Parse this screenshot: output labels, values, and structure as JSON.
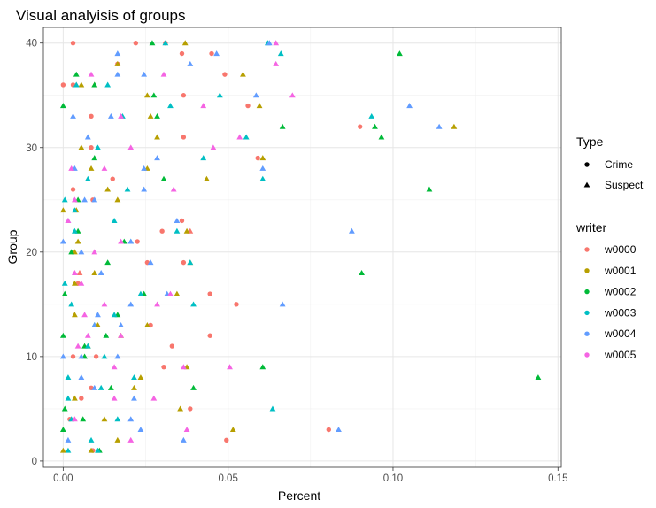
{
  "chart_data": {
    "type": "scatter",
    "title": "Visual analyisis of groups",
    "xlabel": "Percent",
    "ylabel": "Group",
    "xlim": [
      -0.006,
      0.151
    ],
    "ylim": [
      -0.6,
      41.5
    ],
    "x_ticks": [
      0.0,
      0.05,
      0.1,
      0.15
    ],
    "x_tick_labels": [
      "0.00",
      "0.05",
      "0.10",
      "0.15"
    ],
    "y_ticks": [
      0,
      10,
      20,
      30,
      40
    ],
    "y_tick_labels": [
      "0",
      "10",
      "20",
      "30",
      "40"
    ],
    "grid": true,
    "legend_placement": "right",
    "legends": [
      {
        "title": "Type",
        "kind": "shape",
        "entries": [
          {
            "label": "Crime",
            "shape": "circle"
          },
          {
            "label": "Suspect",
            "shape": "triangle"
          }
        ]
      },
      {
        "title": "writer",
        "kind": "color",
        "entries": [
          {
            "label": "w0000",
            "color": "#F8766D"
          },
          {
            "label": "w0001",
            "color": "#B79F00"
          },
          {
            "label": "w0002",
            "color": "#00BA38"
          },
          {
            "label": "w0003",
            "color": "#00BFC4"
          },
          {
            "label": "w0004",
            "color": "#619CFF"
          },
          {
            "label": "w0005",
            "color": "#F564E3"
          }
        ]
      }
    ],
    "series": [
      {
        "writer": "w0000",
        "type": "Crime",
        "points": [
          [
            0.003,
            40
          ],
          [
            0.022,
            40
          ],
          [
            0.031,
            40
          ],
          [
            0.036,
            39
          ],
          [
            0.045,
            39
          ],
          [
            0.0165,
            38
          ],
          [
            0.049,
            37
          ],
          [
            0.0,
            36
          ],
          [
            0.003,
            36
          ],
          [
            0.0085,
            33
          ],
          [
            0.0365,
            35
          ],
          [
            0.056,
            34
          ],
          [
            0.0365,
            31
          ],
          [
            0.059,
            29
          ],
          [
            0.09,
            32
          ],
          [
            0.0085,
            30
          ],
          [
            0.015,
            27
          ],
          [
            0.003,
            26
          ],
          [
            0.009,
            25
          ],
          [
            0.036,
            23
          ],
          [
            0.03,
            22
          ],
          [
            0.0225,
            21
          ],
          [
            0.0255,
            19
          ],
          [
            0.0365,
            19
          ],
          [
            0.0045,
            17
          ],
          [
            0.0445,
            16
          ],
          [
            0.0525,
            15
          ],
          [
            0.0265,
            13
          ],
          [
            0.033,
            11
          ],
          [
            0.0445,
            12
          ],
          [
            0.003,
            10
          ],
          [
            0.01,
            10
          ],
          [
            0.0305,
            9
          ],
          [
            0.0085,
            7
          ],
          [
            0.0385,
            5
          ],
          [
            0.0055,
            6
          ],
          [
            0.002,
            4
          ],
          [
            0.0805,
            3
          ],
          [
            0.0495,
            2
          ],
          [
            0.009,
            1
          ]
        ]
      },
      {
        "writer": "w0000",
        "type": "Suspect",
        "points": [
          [
            0.004,
            36
          ],
          [
            0.0385,
            22
          ],
          [
            0.005,
            18
          ]
        ]
      },
      {
        "writer": "w0001",
        "type": "Suspect",
        "points": [
          [
            0.037,
            40
          ],
          [
            0.0165,
            38
          ],
          [
            0.0055,
            36
          ],
          [
            0.0095,
            36
          ],
          [
            0.0255,
            35
          ],
          [
            0.0545,
            37
          ],
          [
            0.0595,
            34
          ],
          [
            0.0265,
            33
          ],
          [
            0.1185,
            32
          ],
          [
            0.0285,
            31
          ],
          [
            0.0055,
            30
          ],
          [
            0.0605,
            29
          ],
          [
            0.0085,
            28
          ],
          [
            0.0255,
            28
          ],
          [
            0.0135,
            26
          ],
          [
            0.0165,
            25
          ],
          [
            0.0435,
            27
          ],
          [
            0.0,
            24
          ],
          [
            0.004,
            24
          ],
          [
            0.0375,
            22
          ],
          [
            0.0045,
            21
          ],
          [
            0.0035,
            20
          ],
          [
            0.0385,
            19
          ],
          [
            0.0095,
            18
          ],
          [
            0.0035,
            17
          ],
          [
            0.0345,
            16
          ],
          [
            0.0035,
            14
          ],
          [
            0.0105,
            13
          ],
          [
            0.0175,
            12
          ],
          [
            0.0255,
            13
          ],
          [
            0.0075,
            11
          ],
          [
            0.0375,
            9
          ],
          [
            0.0355,
            5
          ],
          [
            0.0235,
            8
          ],
          [
            0.0215,
            7
          ],
          [
            0.0125,
            4
          ],
          [
            0.0515,
            3
          ],
          [
            0.0035,
            6
          ],
          [
            0.0165,
            2
          ],
          [
            0.0,
            1
          ],
          [
            0.0085,
            1
          ]
        ]
      },
      {
        "writer": "w0002",
        "type": "Suspect",
        "points": [
          [
            0.027,
            40
          ],
          [
            0.102,
            39
          ],
          [
            0.004,
            37
          ],
          [
            0.0095,
            36
          ],
          [
            0.0275,
            35
          ],
          [
            0.0,
            34
          ],
          [
            0.0285,
            33
          ],
          [
            0.0665,
            32
          ],
          [
            0.0945,
            32
          ],
          [
            0.0965,
            31
          ],
          [
            0.0095,
            29
          ],
          [
            0.0305,
            27
          ],
          [
            0.111,
            26
          ],
          [
            0.0045,
            25
          ],
          [
            0.0185,
            21
          ],
          [
            0.0045,
            22
          ],
          [
            0.0025,
            20
          ],
          [
            0.0135,
            19
          ],
          [
            0.0905,
            18
          ],
          [
            0.0005,
            16
          ],
          [
            0.0245,
            16
          ],
          [
            0.0165,
            14
          ],
          [
            0.0095,
            13
          ],
          [
            0.013,
            12
          ],
          [
            0.0,
            12
          ],
          [
            0.0065,
            11
          ],
          [
            0.0065,
            10
          ],
          [
            0.0605,
            9
          ],
          [
            0.0395,
            7
          ],
          [
            0.0145,
            7
          ],
          [
            0.144,
            8
          ],
          [
            0.006,
            4
          ],
          [
            0.0,
            3
          ],
          [
            0.0005,
            5
          ],
          [
            0.011,
            1
          ]
        ]
      },
      {
        "writer": "w0003",
        "type": "Suspect",
        "points": [
          [
            0.031,
            40
          ],
          [
            0.062,
            40
          ],
          [
            0.066,
            39
          ],
          [
            0.004,
            36
          ],
          [
            0.0135,
            36
          ],
          [
            0.0475,
            35
          ],
          [
            0.018,
            33
          ],
          [
            0.0325,
            34
          ],
          [
            0.0935,
            33
          ],
          [
            0.0555,
            31
          ],
          [
            0.0105,
            30
          ],
          [
            0.0425,
            29
          ],
          [
            0.0075,
            27
          ],
          [
            0.0195,
            26
          ],
          [
            0.0605,
            27
          ],
          [
            0.0005,
            25
          ],
          [
            0.0035,
            24
          ],
          [
            0.0155,
            23
          ],
          [
            0.0035,
            22
          ],
          [
            0.0345,
            22
          ],
          [
            0.0205,
            21
          ],
          [
            0.0385,
            19
          ],
          [
            0.0005,
            17
          ],
          [
            0.0025,
            15
          ],
          [
            0.0155,
            14
          ],
          [
            0.0395,
            15
          ],
          [
            0.0235,
            16
          ],
          [
            0.0125,
            10
          ],
          [
            0.0075,
            11
          ],
          [
            0.0015,
            8
          ],
          [
            0.0215,
            8
          ],
          [
            0.0115,
            7
          ],
          [
            0.0635,
            5
          ],
          [
            0.0025,
            4
          ],
          [
            0.0165,
            4
          ],
          [
            0.0015,
            6
          ],
          [
            0.0085,
            2
          ],
          [
            0.0015,
            1
          ],
          [
            0.0105,
            1
          ]
        ]
      },
      {
        "writer": "w0004",
        "type": "Suspect",
        "points": [
          [
            0.0625,
            40
          ],
          [
            0.0165,
            39
          ],
          [
            0.0465,
            39
          ],
          [
            0.0165,
            37
          ],
          [
            0.0385,
            38
          ],
          [
            0.003,
            33
          ],
          [
            0.0145,
            33
          ],
          [
            0.0245,
            37
          ],
          [
            0.0585,
            35
          ],
          [
            0.105,
            34
          ],
          [
            0.114,
            32
          ],
          [
            0.0075,
            31
          ],
          [
            0.0285,
            29
          ],
          [
            0.0035,
            28
          ],
          [
            0.0245,
            28
          ],
          [
            0.0605,
            28
          ],
          [
            0.0065,
            25
          ],
          [
            0.0245,
            26
          ],
          [
            0.0095,
            25
          ],
          [
            0.0,
            21
          ],
          [
            0.0015,
            23
          ],
          [
            0.0205,
            21
          ],
          [
            0.0875,
            22
          ],
          [
            0.0345,
            23
          ],
          [
            0.0055,
            20
          ],
          [
            0.0115,
            18
          ],
          [
            0.0265,
            19
          ],
          [
            0.0105,
            14
          ],
          [
            0.0205,
            15
          ],
          [
            0.0315,
            16
          ],
          [
            0.0665,
            15
          ],
          [
            0.0175,
            13
          ],
          [
            0.0095,
            13
          ],
          [
            0.0,
            10
          ],
          [
            0.0055,
            10
          ],
          [
            0.0095,
            7
          ],
          [
            0.0165,
            10
          ],
          [
            0.0055,
            8
          ],
          [
            0.0215,
            6
          ],
          [
            0.0205,
            4
          ],
          [
            0.0365,
            2
          ],
          [
            0.0015,
            2
          ],
          [
            0.0835,
            3
          ],
          [
            0.0235,
            3
          ]
        ]
      },
      {
        "writer": "w0005",
        "type": "Suspect",
        "points": [
          [
            0.0645,
            40
          ],
          [
            0.0645,
            38
          ],
          [
            0.0695,
            35
          ],
          [
            0.0085,
            37
          ],
          [
            0.0305,
            37
          ],
          [
            0.0175,
            33
          ],
          [
            0.0425,
            34
          ],
          [
            0.0535,
            31
          ],
          [
            0.0455,
            30
          ],
          [
            0.0125,
            28
          ],
          [
            0.0025,
            28
          ],
          [
            0.0205,
            30
          ],
          [
            0.0335,
            26
          ],
          [
            0.0035,
            25
          ],
          [
            0.0015,
            23
          ],
          [
            0.0175,
            21
          ],
          [
            0.0095,
            20
          ],
          [
            0.0035,
            18
          ],
          [
            0.0055,
            17
          ],
          [
            0.0325,
            16
          ],
          [
            0.0285,
            15
          ],
          [
            0.0065,
            14
          ],
          [
            0.0125,
            15
          ],
          [
            0.0175,
            12
          ],
          [
            0.0075,
            12
          ],
          [
            0.0155,
            9
          ],
          [
            0.0365,
            9
          ],
          [
            0.0505,
            9
          ],
          [
            0.0045,
            11
          ],
          [
            0.0155,
            6
          ],
          [
            0.0275,
            6
          ],
          [
            0.0375,
            3
          ],
          [
            0.0035,
            4
          ],
          [
            0.0205,
            2
          ]
        ]
      }
    ]
  }
}
